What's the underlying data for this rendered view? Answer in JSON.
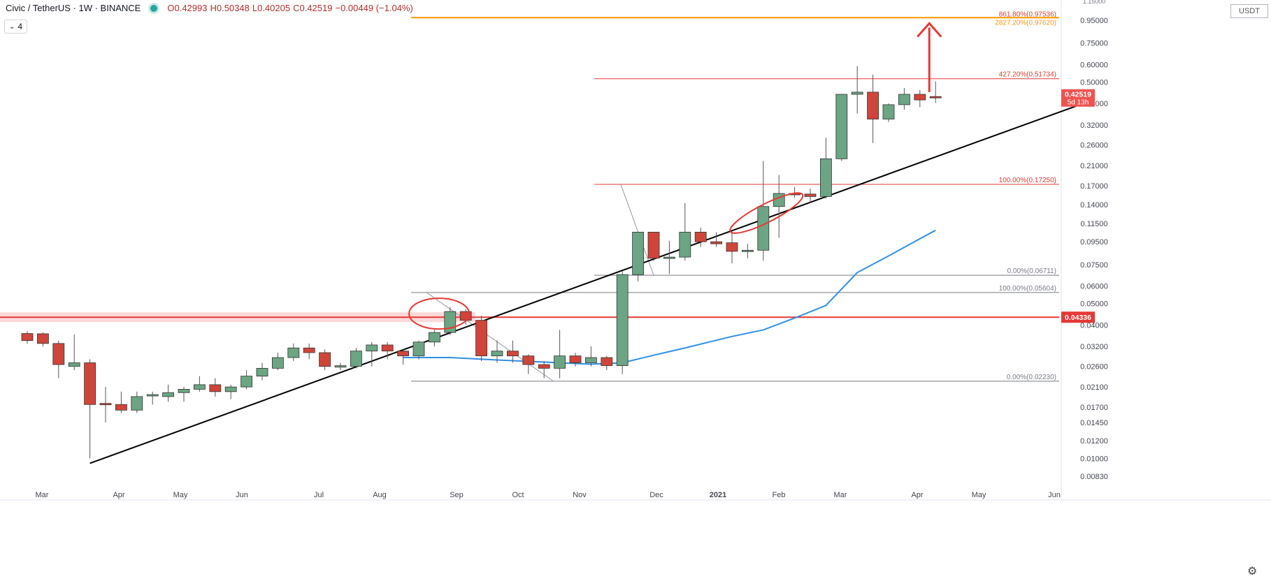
{
  "header": {
    "symbol": "Civic / TetherUS · 1W · BINANCE",
    "open": "O0.42993",
    "high": "H0.50348",
    "low": "L0.40205",
    "close": "C0.42519",
    "change": "−0.00449 (−1.04%)",
    "indicator_count": "4"
  },
  "price_scale": {
    "unit": "USDT",
    "top_partial_label": "1.15000",
    "current_price": "0.42519",
    "countdown": "5d 13h",
    "support_label": "0.04336"
  },
  "colors": {
    "bull": "#6ba583",
    "bear": "#d0453a",
    "ma": "#2f8fe6",
    "trendline": "#000000",
    "fib_red": "#e53935",
    "fib_orange": "#ff9800",
    "fib_grey": "#787b86",
    "support_band": "#ef5350"
  },
  "chart_data": {
    "type": "candlestick",
    "title": "Civic / TetherUS · 1W · BINANCE",
    "y_scale": "log",
    "x_tick_labels": [
      "Mar",
      "Apr",
      "May",
      "Jun",
      "Jul",
      "Aug",
      "Sep",
      "Oct",
      "Nov",
      "Dec",
      "2021",
      "Feb",
      "Mar",
      "Apr",
      "May",
      "Jun"
    ],
    "y_tick_labels": [
      "0.95000",
      "0.75000",
      "0.60000",
      "0.50000",
      "0.40000",
      "0.32000",
      "0.26000",
      "0.21000",
      "0.17000",
      "0.14000",
      "0.11500",
      "0.09500",
      "0.07500",
      "0.06000",
      "0.05000",
      "0.04000",
      "0.03200",
      "0.02600",
      "0.02100",
      "0.01700",
      "0.01450",
      "0.01200",
      "0.01000",
      "0.00830"
    ],
    "candles": [
      {
        "o": 0.0366,
        "h": 0.0375,
        "l": 0.033,
        "c": 0.034
      },
      {
        "o": 0.0365,
        "h": 0.037,
        "l": 0.032,
        "c": 0.033
      },
      {
        "o": 0.033,
        "h": 0.034,
        "l": 0.023,
        "c": 0.0265
      },
      {
        "o": 0.026,
        "h": 0.0362,
        "l": 0.025,
        "c": 0.027
      },
      {
        "o": 0.027,
        "h": 0.028,
        "l": 0.01,
        "c": 0.0175
      },
      {
        "o": 0.0177,
        "h": 0.021,
        "l": 0.0145,
        "c": 0.0175
      },
      {
        "o": 0.0175,
        "h": 0.02,
        "l": 0.016,
        "c": 0.0165
      },
      {
        "o": 0.0165,
        "h": 0.02,
        "l": 0.016,
        "c": 0.019
      },
      {
        "o": 0.0192,
        "h": 0.02,
        "l": 0.0175,
        "c": 0.0194
      },
      {
        "o": 0.019,
        "h": 0.0215,
        "l": 0.018,
        "c": 0.0198
      },
      {
        "o": 0.0198,
        "h": 0.021,
        "l": 0.018,
        "c": 0.0205
      },
      {
        "o": 0.0205,
        "h": 0.0235,
        "l": 0.02,
        "c": 0.0215
      },
      {
        "o": 0.0215,
        "h": 0.023,
        "l": 0.019,
        "c": 0.02
      },
      {
        "o": 0.02,
        "h": 0.0215,
        "l": 0.0185,
        "c": 0.021
      },
      {
        "o": 0.021,
        "h": 0.025,
        "l": 0.0205,
        "c": 0.0235
      },
      {
        "o": 0.0235,
        "h": 0.027,
        "l": 0.0225,
        "c": 0.0255
      },
      {
        "o": 0.0255,
        "h": 0.03,
        "l": 0.025,
        "c": 0.0285
      },
      {
        "o": 0.0285,
        "h": 0.033,
        "l": 0.0275,
        "c": 0.0315
      },
      {
        "o": 0.0315,
        "h": 0.033,
        "l": 0.028,
        "c": 0.03
      },
      {
        "o": 0.03,
        "h": 0.031,
        "l": 0.025,
        "c": 0.026
      },
      {
        "o": 0.0258,
        "h": 0.027,
        "l": 0.025,
        "c": 0.0262
      },
      {
        "o": 0.026,
        "h": 0.0315,
        "l": 0.0255,
        "c": 0.0305
      },
      {
        "o": 0.0305,
        "h": 0.0335,
        "l": 0.026,
        "c": 0.0325
      },
      {
        "o": 0.0325,
        "h": 0.0335,
        "l": 0.028,
        "c": 0.0305
      },
      {
        "o": 0.0305,
        "h": 0.031,
        "l": 0.0265,
        "c": 0.029
      },
      {
        "o": 0.029,
        "h": 0.034,
        "l": 0.028,
        "c": 0.0335
      },
      {
        "o": 0.0335,
        "h": 0.038,
        "l": 0.032,
        "c": 0.037
      },
      {
        "o": 0.037,
        "h": 0.048,
        "l": 0.036,
        "c": 0.046
      },
      {
        "o": 0.046,
        "h": 0.047,
        "l": 0.04,
        "c": 0.042
      },
      {
        "o": 0.042,
        "h": 0.044,
        "l": 0.0275,
        "c": 0.029
      },
      {
        "o": 0.029,
        "h": 0.034,
        "l": 0.027,
        "c": 0.0305
      },
      {
        "o": 0.0305,
        "h": 0.034,
        "l": 0.027,
        "c": 0.029
      },
      {
        "o": 0.029,
        "h": 0.0295,
        "l": 0.024,
        "c": 0.0265
      },
      {
        "o": 0.0265,
        "h": 0.0275,
        "l": 0.023,
        "c": 0.0255
      },
      {
        "o": 0.0255,
        "h": 0.038,
        "l": 0.023,
        "c": 0.029
      },
      {
        "o": 0.029,
        "h": 0.03,
        "l": 0.026,
        "c": 0.027
      },
      {
        "o": 0.027,
        "h": 0.032,
        "l": 0.026,
        "c": 0.0285
      },
      {
        "o": 0.0285,
        "h": 0.029,
        "l": 0.025,
        "c": 0.0262
      },
      {
        "o": 0.0262,
        "h": 0.07,
        "l": 0.024,
        "c": 0.0675
      },
      {
        "o": 0.0675,
        "h": 0.105,
        "l": 0.063,
        "c": 0.105
      },
      {
        "o": 0.105,
        "h": 0.105,
        "l": 0.078,
        "c": 0.08
      },
      {
        "o": 0.08,
        "h": 0.096,
        "l": 0.068,
        "c": 0.081
      },
      {
        "o": 0.081,
        "h": 0.142,
        "l": 0.078,
        "c": 0.105
      },
      {
        "o": 0.105,
        "h": 0.11,
        "l": 0.09,
        "c": 0.095
      },
      {
        "o": 0.095,
        "h": 0.105,
        "l": 0.09,
        "c": 0.093
      },
      {
        "o": 0.094,
        "h": 0.106,
        "l": 0.076,
        "c": 0.086
      },
      {
        "o": 0.086,
        "h": 0.093,
        "l": 0.08,
        "c": 0.087
      },
      {
        "o": 0.087,
        "h": 0.22,
        "l": 0.078,
        "c": 0.137
      },
      {
        "o": 0.137,
        "h": 0.19,
        "l": 0.099,
        "c": 0.157
      },
      {
        "o": 0.157,
        "h": 0.168,
        "l": 0.15,
        "c": 0.156
      },
      {
        "o": 0.156,
        "h": 0.165,
        "l": 0.142,
        "c": 0.152
      },
      {
        "o": 0.152,
        "h": 0.28,
        "l": 0.149,
        "c": 0.225
      },
      {
        "o": 0.225,
        "h": 0.44,
        "l": 0.22,
        "c": 0.44
      },
      {
        "o": 0.44,
        "h": 0.59,
        "l": 0.36,
        "c": 0.45
      },
      {
        "o": 0.45,
        "h": 0.54,
        "l": 0.265,
        "c": 0.34
      },
      {
        "o": 0.34,
        "h": 0.4,
        "l": 0.33,
        "c": 0.395
      },
      {
        "o": 0.395,
        "h": 0.47,
        "l": 0.375,
        "c": 0.44
      },
      {
        "o": 0.44,
        "h": 0.46,
        "l": 0.385,
        "c": 0.415
      },
      {
        "o": 0.4299,
        "h": 0.5035,
        "l": 0.4021,
        "c": 0.4252
      }
    ],
    "moving_average": [
      {
        "i": 24,
        "v": 0.0285
      },
      {
        "i": 27,
        "v": 0.0285
      },
      {
        "i": 30,
        "v": 0.0278
      },
      {
        "i": 33,
        "v": 0.0272
      },
      {
        "i": 36,
        "v": 0.0266
      },
      {
        "i": 38,
        "v": 0.027
      },
      {
        "i": 40,
        "v": 0.0292
      },
      {
        "i": 42,
        "v": 0.0315
      },
      {
        "i": 45,
        "v": 0.0355
      },
      {
        "i": 47,
        "v": 0.038
      },
      {
        "i": 49,
        "v": 0.043
      },
      {
        "i": 51,
        "v": 0.049
      },
      {
        "i": 53,
        "v": 0.069
      },
      {
        "i": 55,
        "v": 0.082
      },
      {
        "i": 57,
        "v": 0.098
      },
      {
        "i": 58,
        "v": 0.107
      }
    ],
    "fib_levels": [
      {
        "label": "861.80%(0.97536)",
        "value": 0.97536,
        "color": "#e53935"
      },
      {
        "label": "2827.20%(0.97620)",
        "value": 0.9762,
        "color": "#ff9800"
      },
      {
        "label": "427.20%(0.51734)",
        "value": 0.51734,
        "color": "#e53935"
      },
      {
        "label": "100.00%(0.17250)",
        "value": 0.1725,
        "color": "#e53935"
      },
      {
        "label": "0.00%(0.06711)",
        "value": 0.06711,
        "color": "#787b86"
      },
      {
        "label": "100.00%(0.05604)",
        "value": 0.05604,
        "color": "#787b86"
      },
      {
        "label": "0.00%(0.02230)",
        "value": 0.0223,
        "color": "#787b86"
      }
    ],
    "support_level": 0.04336,
    "trendline": [
      {
        "i": 4,
        "v": 0.0095
      },
      {
        "i": 67,
        "v": 0.39
      }
    ]
  }
}
